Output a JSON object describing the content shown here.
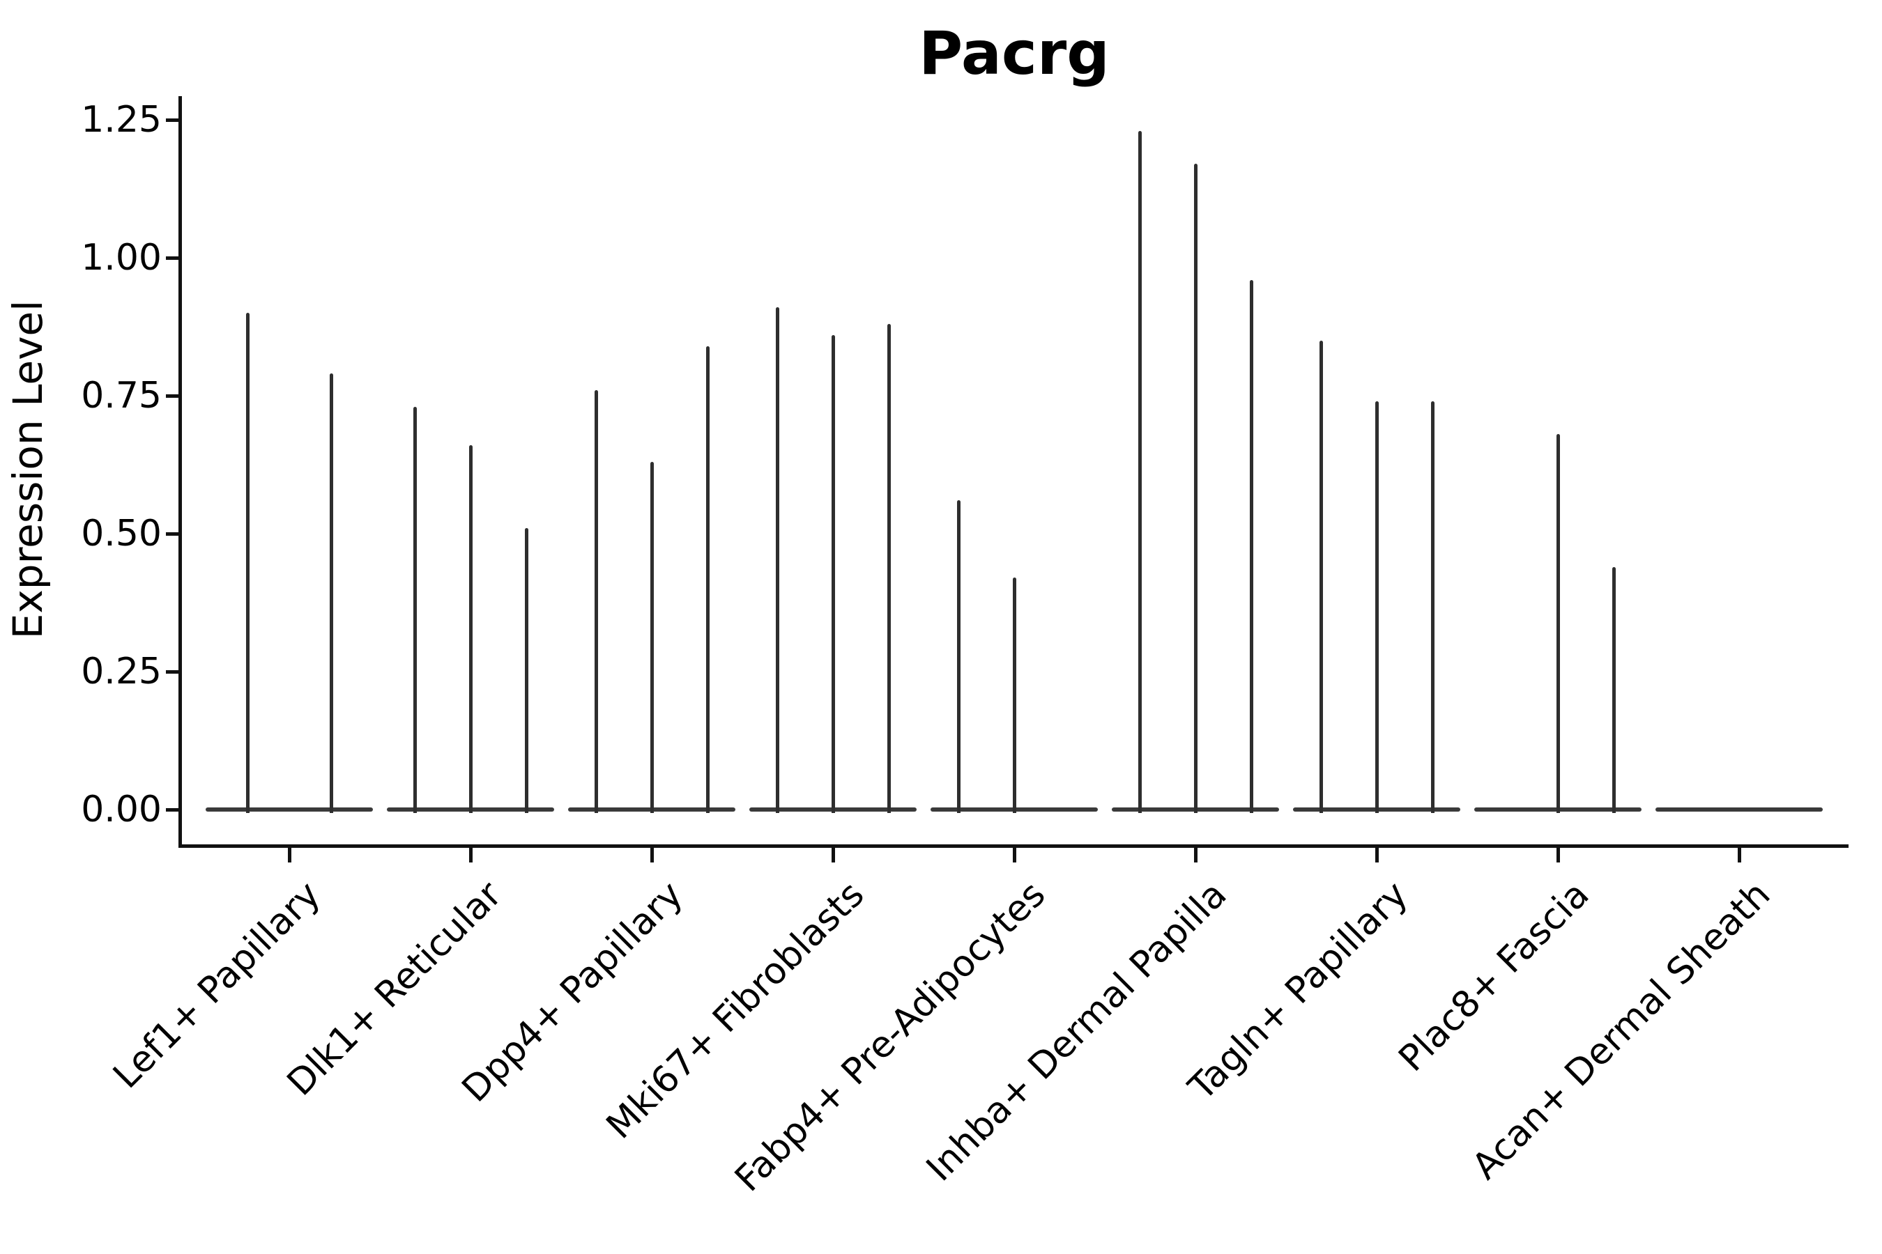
{
  "title": "Pacrg",
  "ylabel": "Expression Level",
  "chart_data": {
    "type": "violin",
    "title": "Pacrg",
    "xlabel": "",
    "ylabel": "Expression Level",
    "ylim": [
      -0.06,
      1.29
    ],
    "grid": false,
    "legend": false,
    "ytick_labels": [
      "0.00",
      "0.25",
      "0.50",
      "0.75",
      "1.00",
      "1.25"
    ],
    "ytick_values": [
      0.0,
      0.25,
      0.5,
      0.75,
      1.0,
      1.25
    ],
    "note": "Each category holds up to 3 narrow violins (split samples); values are the max expression (spike top) per violin, null = violin flat at zero",
    "categories": [
      {
        "label": "Lef1+ Papillary",
        "violin_max_values": [
          0.9,
          0.79
        ]
      },
      {
        "label": "Dlk1+ Reticular",
        "violin_max_values": [
          0.73,
          0.66,
          0.51
        ]
      },
      {
        "label": "Dpp4+ Papillary",
        "violin_max_values": [
          0.76,
          0.63,
          0.84
        ]
      },
      {
        "label": "Mki67+ Fibroblasts",
        "violin_max_values": [
          0.91,
          0.86,
          0.88
        ]
      },
      {
        "label": "Fabp4+ Pre-Adipocytes",
        "violin_max_values": [
          0.56,
          0.42,
          null
        ]
      },
      {
        "label": "Inhba+ Dermal Papilla",
        "violin_max_values": [
          1.23,
          1.17,
          0.96
        ]
      },
      {
        "label": "Tagln+ Papillary",
        "violin_max_values": [
          0.85,
          0.74,
          0.74
        ]
      },
      {
        "label": "Plac8+ Fascia",
        "violin_max_values": [
          null,
          0.68,
          0.44
        ]
      },
      {
        "label": "Acan+ Dermal Sheath",
        "violin_max_values": [
          null,
          null,
          null
        ]
      }
    ],
    "colors": {
      "violin_ink": "#2e2e2e",
      "baseline_ink": "#3a3a3a",
      "axis_ink": "#111111",
      "text_ink": "#000000",
      "background": "#ffffff"
    }
  }
}
